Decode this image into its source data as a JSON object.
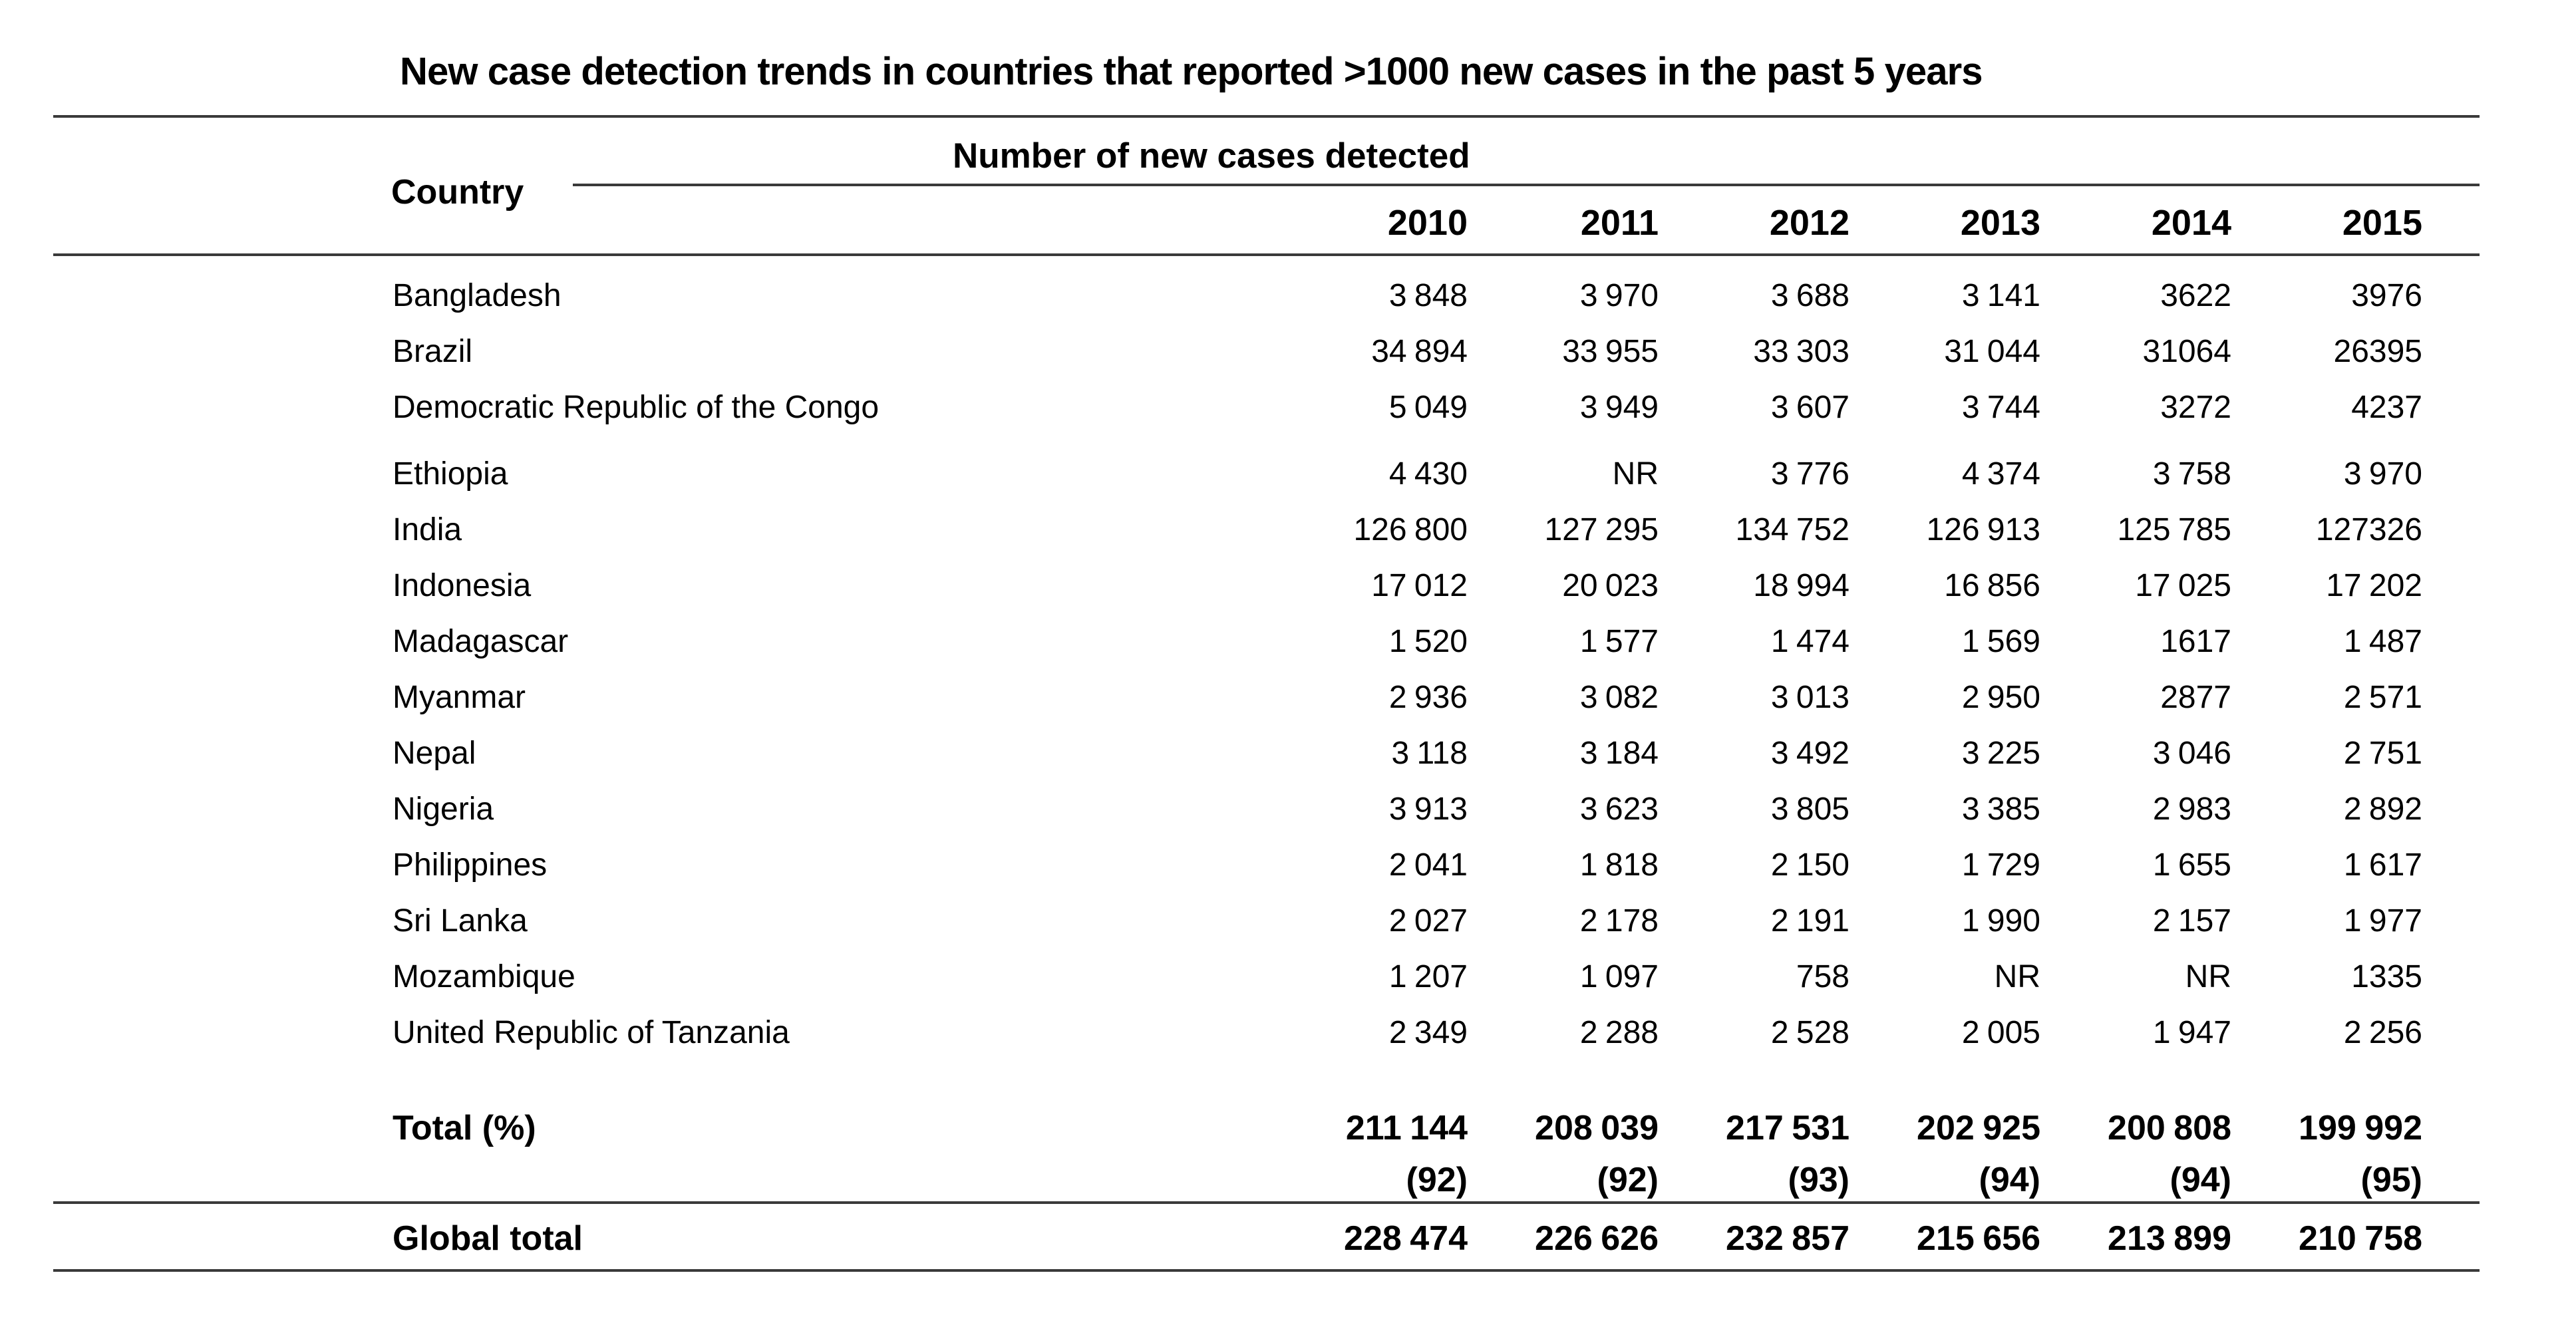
{
  "title": "New case detection trends in countries that reported >1000 new cases in the past 5 years",
  "table": {
    "country_header": "Country",
    "group_header": "Number of new cases detected",
    "years": [
      "2010",
      "2011",
      "2012",
      "2013",
      "2014",
      "2015"
    ],
    "rows": [
      {
        "country": "Bangladesh",
        "values": [
          "3 848",
          "3 970",
          "3 688",
          "3 141",
          "3622",
          "3976"
        ]
      },
      {
        "country": "Brazil",
        "values": [
          "34 894",
          "33 955",
          "33 303",
          "31 044",
          "31064",
          "26395"
        ]
      },
      {
        "country": "Democratic Republic of the Congo",
        "values": [
          "5 049",
          "3 949",
          "3 607",
          "3 744",
          "3272",
          "4237"
        ]
      },
      {
        "country": "Ethiopia",
        "values": [
          "4 430",
          "NR",
          "3 776",
          "4 374",
          "3 758",
          "3 970"
        ]
      },
      {
        "country": "India",
        "values": [
          "126 800",
          "127 295",
          "134 752",
          "126 913",
          "125 785",
          "127326"
        ]
      },
      {
        "country": "Indonesia",
        "values": [
          "17 012",
          "20 023",
          "18 994",
          "16 856",
          "17 025",
          "17 202"
        ]
      },
      {
        "country": "Madagascar",
        "values": [
          "1 520",
          "1 577",
          "1 474",
          "1 569",
          "1617",
          "1 487"
        ]
      },
      {
        "country": "Myanmar",
        "values": [
          "2 936",
          "3 082",
          "3 013",
          "2 950",
          "2877",
          "2 571"
        ]
      },
      {
        "country": "Nepal",
        "values": [
          "3 118",
          "3 184",
          "3 492",
          "3 225",
          "3 046",
          "2 751"
        ]
      },
      {
        "country": "Nigeria",
        "values": [
          "3 913",
          "3 623",
          "3 805",
          "3 385",
          "2 983",
          "2 892"
        ]
      },
      {
        "country": "Philippines",
        "values": [
          "2 041",
          "1 818",
          "2 150",
          "1 729",
          "1 655",
          "1 617"
        ]
      },
      {
        "country": "Sri Lanka",
        "values": [
          "2 027",
          "2 178",
          "2 191",
          "1 990",
          "2 157",
          "1 977"
        ]
      },
      {
        "country": "Mozambique",
        "values": [
          "1 207",
          "1 097",
          "758",
          "NR",
          "NR",
          "1335"
        ]
      },
      {
        "country": "United Republic of Tanzania",
        "values": [
          "2 349",
          "2 288",
          "2 528",
          "2 005",
          "1 947",
          "2 256"
        ]
      }
    ],
    "total_row": {
      "label": "Total (%)",
      "values": [
        "211 144",
        "208 039",
        "217 531",
        "202 925",
        "200 808",
        "199 992"
      ]
    },
    "percent_row": {
      "values": [
        "(92)",
        "(92)",
        "(93)",
        "(94)",
        "(94)",
        "(95)"
      ]
    },
    "global_row": {
      "label": "Global total",
      "values": [
        "228 474",
        "226 626",
        "232 857",
        "215 656",
        "213 899",
        "210 758"
      ]
    }
  }
}
